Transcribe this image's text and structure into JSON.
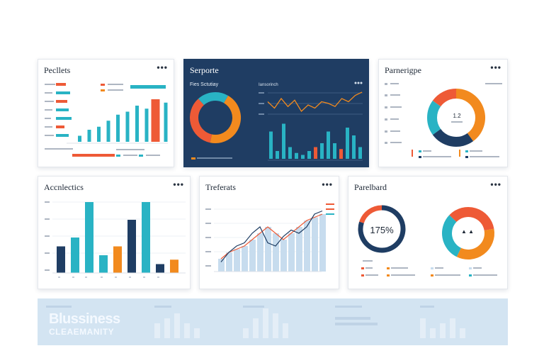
{
  "panels": {
    "p1": {
      "title": "Pecllets"
    },
    "p2": {
      "title": "Serporte",
      "donut_label": "Fies Sctutiay",
      "line_label": "Iansorinch"
    },
    "p3": {
      "title": "Parnerigpe",
      "center_text": "1.2"
    },
    "p4": {
      "title": "Accnlectics"
    },
    "p5": {
      "title": "Treferats"
    },
    "p6": {
      "title": "Parelbard",
      "center_text": "175%"
    }
  },
  "menu_glyph": "•••",
  "footer": {
    "brand_line1": "Blussiness",
    "brand_line2": "CLEAEMANITY"
  },
  "colors": {
    "teal": "#29b3c4",
    "orange": "#f28a1e",
    "red": "#ee5a36",
    "navy": "#1f3d63",
    "light_blue": "#c7dcee",
    "strip": "#d3e4f2"
  },
  "chart_data": [
    {
      "type": "bar",
      "panel": "Pecllets",
      "series": [
        {
          "values": [
            1,
            2,
            2.5,
            3.5,
            4.5,
            5,
            6,
            5.5,
            6.5,
            6.5
          ]
        },
        {
          "values": [
            null,
            null,
            null,
            null,
            null,
            null,
            null,
            null,
            null,
            8
          ]
        }
      ]
    },
    {
      "type": "line",
      "panel": "Serporte",
      "series": [
        {
          "values": [
            5,
            3,
            6,
            3.5,
            5.5,
            2,
            4,
            3,
            5,
            4.5,
            3.5,
            6,
            5,
            7,
            8
          ]
        }
      ]
    },
    {
      "type": "bar",
      "panel": "Serporte",
      "series": [
        {
          "values": [
            7,
            2,
            9,
            3,
            1.5,
            1,
            2,
            3,
            4,
            7,
            4,
            2.5,
            8,
            6,
            3
          ]
        }
      ]
    },
    {
      "type": "pie",
      "panel": "Serporte",
      "values": [
        45,
        35,
        20
      ]
    },
    {
      "type": "pie",
      "panel": "Parnerigpe",
      "values": [
        40,
        25,
        20,
        15
      ]
    },
    {
      "type": "bar",
      "panel": "Accnlectics",
      "values": [
        3,
        4,
        8,
        2,
        3,
        6,
        8,
        1,
        1.5
      ]
    },
    {
      "type": "area",
      "panel": "Treferats",
      "series": [
        {
          "values": [
            2,
            3,
            3.5,
            4,
            5,
            6,
            7,
            6,
            5,
            6,
            7,
            8,
            8.5,
            9
          ]
        },
        {
          "values": [
            1.5,
            3,
            4,
            4.5,
            6,
            7,
            4.5,
            4,
            5.5,
            6.5,
            6,
            7,
            9,
            9.5
          ]
        }
      ]
    },
    {
      "type": "pie",
      "panel": "Parelbard",
      "values": [
        80,
        20
      ]
    },
    {
      "type": "pie",
      "panel": "Parelbard",
      "values": [
        35,
        30,
        35
      ]
    },
    {
      "type": "bar",
      "panel": "footer",
      "values": [
        3,
        4,
        5,
        3,
        2,
        2,
        4,
        6,
        5,
        3,
        4,
        2,
        3,
        4,
        2
      ]
    }
  ]
}
